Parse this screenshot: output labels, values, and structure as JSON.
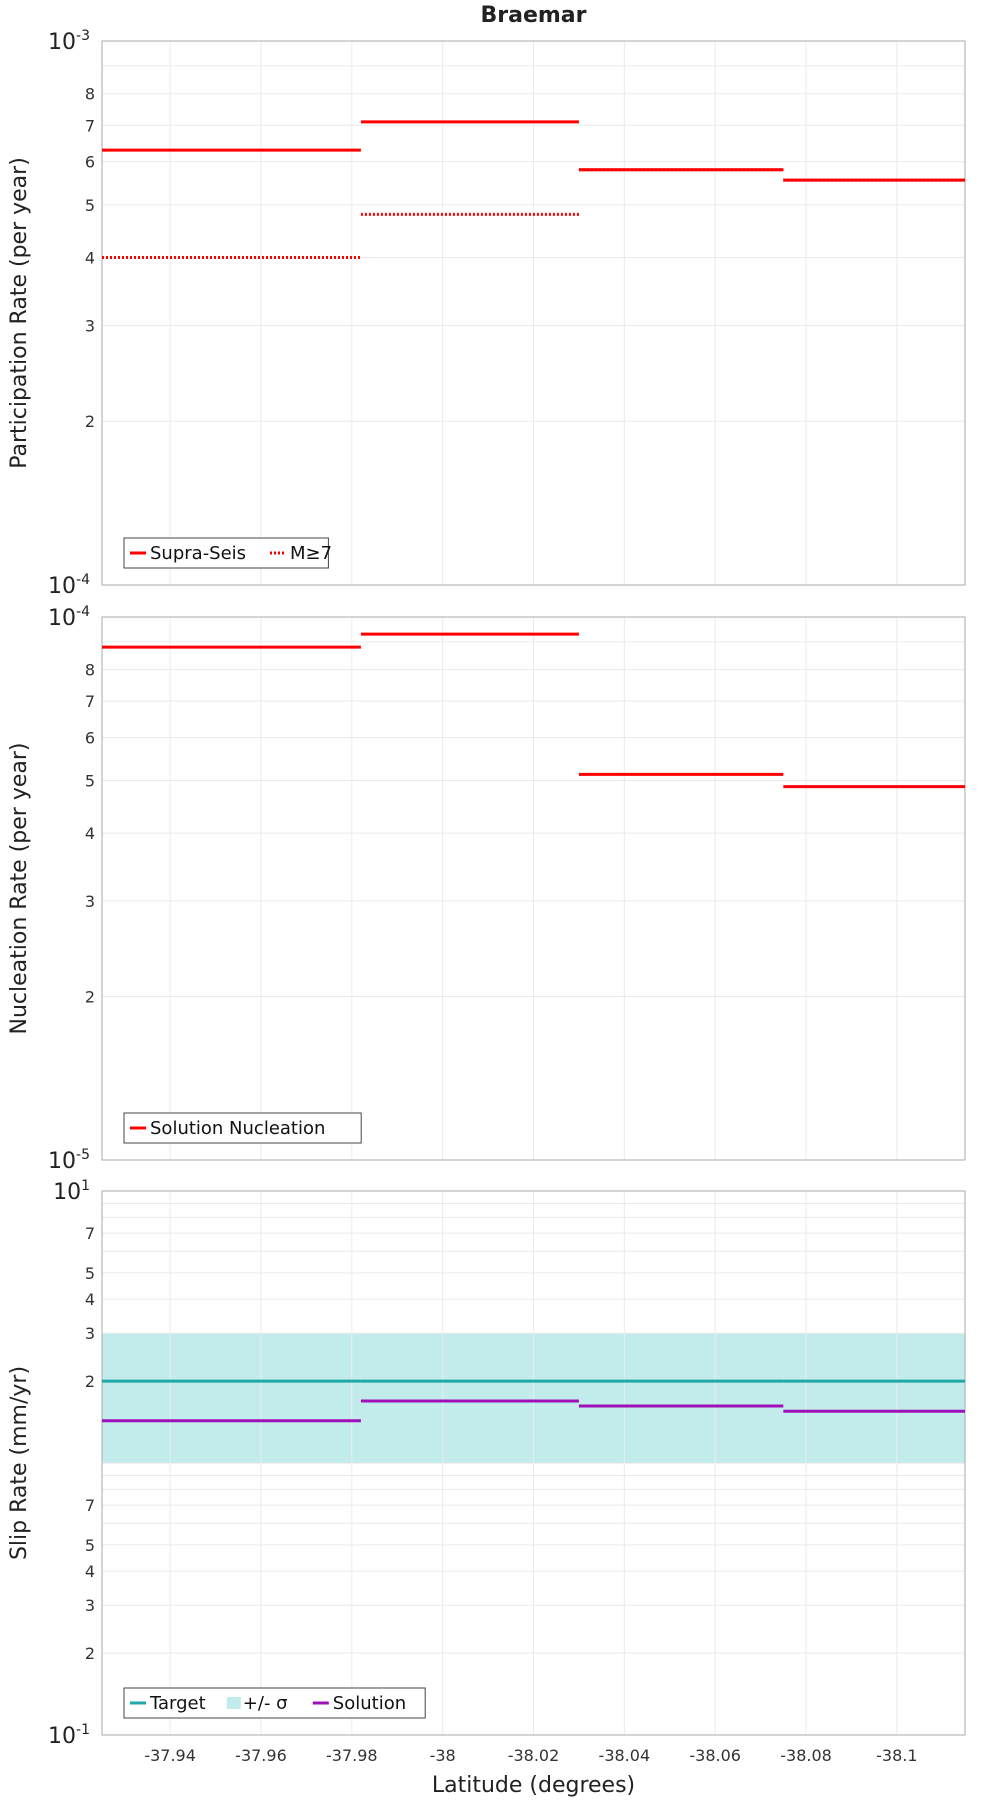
{
  "chart_data": {
    "title": "Braemar",
    "type": "line",
    "x_axis": {
      "label": "Latitude (degrees)",
      "range": [
        -37.925,
        -38.115
      ],
      "ticks": [
        -37.94,
        -37.96,
        -37.98,
        -38,
        -38.02,
        -38.04,
        -38.06,
        -38.08,
        -38.1
      ],
      "tick_labels": [
        "-37.94",
        "-37.96",
        "-37.98",
        "-38",
        "-38.02",
        "-38.04",
        "-38.06",
        "-38.08",
        "-38.1"
      ]
    },
    "panels": [
      {
        "name": "participation",
        "ylabel": "Participation Rate (per year)",
        "scale": "log",
        "ylim": [
          0.0001,
          0.001
        ],
        "minor_tick_labels": [
          "2",
          "3",
          "4",
          "5",
          "6",
          "7",
          "8"
        ],
        "legend": {
          "position": "bottom-left",
          "entries": [
            "Supra-Seis",
            "M≥7"
          ]
        },
        "series": [
          {
            "name": "Supra-Seis",
            "color": "#ff0000",
            "style": "solid",
            "segments": [
              {
                "x": [
                  -37.925,
                  -37.982
                ],
                "y": 0.00063
              },
              {
                "x": [
                  -37.982,
                  -38.03
                ],
                "y": 0.00071
              },
              {
                "x": [
                  -38.03,
                  -38.075
                ],
                "y": 0.00058
              },
              {
                "x": [
                  -38.075,
                  -38.115
                ],
                "y": 0.000555
              }
            ]
          },
          {
            "name": "M≥7",
            "color": "#ff0000",
            "style": "dotted",
            "segments": [
              {
                "x": [
                  -37.925,
                  -37.982
                ],
                "y": 0.0004
              },
              {
                "x": [
                  -37.982,
                  -38.03
                ],
                "y": 0.00048
              },
              {
                "x": [
                  -38.03,
                  -38.075
                ],
                "y": 0.00058
              },
              {
                "x": [
                  -38.075,
                  -38.115
                ],
                "y": 0.000555
              }
            ]
          }
        ]
      },
      {
        "name": "nucleation",
        "ylabel": "Nucleation Rate (per year)",
        "scale": "log",
        "ylim": [
          1e-05,
          0.0001
        ],
        "minor_tick_labels": [
          "2",
          "3",
          "4",
          "5",
          "6",
          "7",
          "8"
        ],
        "legend": {
          "position": "bottom-left",
          "entries": [
            "Solution Nucleation"
          ]
        },
        "series": [
          {
            "name": "Solution Nucleation",
            "color": "#ff0000",
            "style": "solid",
            "segments": [
              {
                "x": [
                  -37.925,
                  -37.982
                ],
                "y": 8.8e-05
              },
              {
                "x": [
                  -37.982,
                  -38.03
                ],
                "y": 9.3e-05
              },
              {
                "x": [
                  -38.03,
                  -38.075
                ],
                "y": 5.13e-05
              },
              {
                "x": [
                  -38.075,
                  -38.115
                ],
                "y": 4.87e-05
              }
            ]
          }
        ]
      },
      {
        "name": "slip",
        "ylabel": "Slip Rate (mm/yr)",
        "scale": "log",
        "ylim": [
          0.1,
          10
        ],
        "minor_tick_labels": [
          "2",
          "3",
          "4",
          "5",
          "7"
        ],
        "legend": {
          "position": "bottom-left",
          "entries": [
            "Target",
            "+/- σ",
            "Solution"
          ]
        },
        "band": {
          "name": "+/- σ",
          "color": "#c2ecec",
          "y": [
            1.0,
            3.0
          ]
        },
        "series": [
          {
            "name": "Target",
            "color": "#20a8a8",
            "style": "solid",
            "segments": [
              {
                "x": [
                  -37.925,
                  -37.982
                ],
                "y": 2.0
              },
              {
                "x": [
                  -37.982,
                  -38.03
                ],
                "y": 2.0
              },
              {
                "x": [
                  -38.03,
                  -38.075
                ],
                "y": 2.0
              },
              {
                "x": [
                  -38.075,
                  -38.115
                ],
                "y": 2.0
              }
            ]
          },
          {
            "name": "Solution",
            "color": "#a010b8",
            "style": "solid",
            "segments": [
              {
                "x": [
                  -37.925,
                  -37.982
                ],
                "y": 1.43
              },
              {
                "x": [
                  -37.982,
                  -38.03
                ],
                "y": 1.69
              },
              {
                "x": [
                  -38.03,
                  -38.075
                ],
                "y": 1.62
              },
              {
                "x": [
                  -38.075,
                  -38.115
                ],
                "y": 1.55
              }
            ]
          }
        ]
      }
    ]
  }
}
